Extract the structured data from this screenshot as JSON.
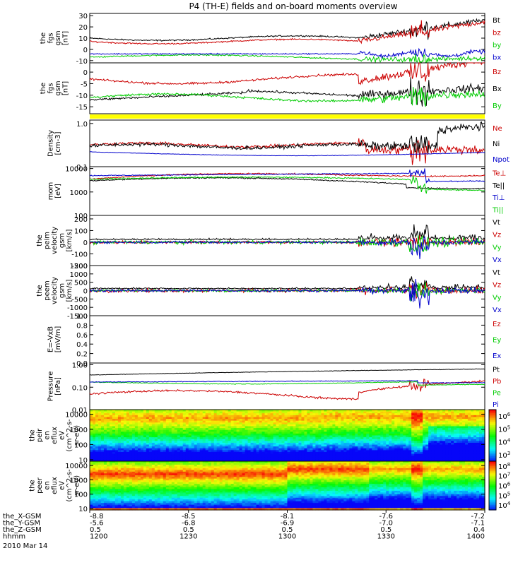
{
  "chart_data": {
    "type": "line",
    "title": "P4 (TH-E) fields and on-board moments overview",
    "date": "2010 Mar 14",
    "panels": [
      {
        "id": "fgs_all",
        "ylabel": [
          "the",
          "fgs",
          "gsm",
          "[nT]"
        ],
        "ylim": [
          -12,
          32
        ],
        "log": false,
        "ticks": [
          "30",
          "20",
          "10",
          "0",
          "-10"
        ],
        "tickvals": [
          30,
          20,
          10,
          0,
          -10
        ],
        "legend": [
          {
            "label": "Bt",
            "color": "#000000"
          },
          {
            "label": "bz",
            "color": "#cc0000"
          },
          {
            "label": "by",
            "color": "#00cc00"
          },
          {
            "label": "bx",
            "color": "#0000cc"
          }
        ],
        "series": [
          {
            "name": "Bt",
            "color": "#000000",
            "kind": "bt"
          },
          {
            "name": "bz",
            "color": "#cc0000",
            "kind": "bz"
          },
          {
            "name": "by",
            "color": "#00cc00",
            "kind": "by"
          },
          {
            "name": "bx",
            "color": "#0000cc",
            "kind": "bx"
          }
        ]
      },
      {
        "id": "fgs_zoom",
        "ylabel": [
          "the",
          "fgs",
          "gsm",
          "[nT]"
        ],
        "ylim": [
          -18,
          4
        ],
        "log": false,
        "ticks": [
          "0",
          "-5",
          "-10",
          "-15"
        ],
        "tickvals": [
          0,
          -5,
          -10,
          -15
        ],
        "legend": [
          {
            "label": "Bz",
            "color": "#cc0000"
          },
          {
            "label": "Bx",
            "color": "#000000"
          },
          {
            "label": "By",
            "color": "#00cc00"
          }
        ],
        "series": [
          {
            "name": "Bz",
            "color": "#cc0000",
            "kind": "bz2"
          },
          {
            "name": "Bx",
            "color": "#000000",
            "kind": "bx2"
          },
          {
            "name": "By",
            "color": "#00cc00",
            "kind": "by2"
          }
        ]
      },
      {
        "id": "density",
        "ylabel": [
          "Density",
          "[cm-3]"
        ],
        "ylim": [
          0.1,
          1.2
        ],
        "log": true,
        "ticks": [
          "1.0",
          "0.1"
        ],
        "tickvals": [
          1.0,
          0.1
        ],
        "legend": [
          {
            "label": "Ne",
            "color": "#cc0000"
          },
          {
            "label": "Ni",
            "color": "#000000"
          },
          {
            "label": "Npot",
            "color": "#0000cc"
          }
        ],
        "series": [
          {
            "name": "Ne",
            "color": "#cc0000",
            "kind": "ne"
          },
          {
            "name": "Ni",
            "color": "#000000",
            "kind": "ni"
          },
          {
            "name": "Npot",
            "color": "#0000cc",
            "kind": "npot"
          }
        ]
      },
      {
        "id": "temp",
        "ylabel": [
          "mom",
          "[eV]"
        ],
        "ylim": [
          100,
          12000
        ],
        "log": true,
        "ticks": [
          "10000",
          "1000",
          "100"
        ],
        "tickvals": [
          10000,
          1000,
          100
        ],
        "legend": [
          {
            "label": "Te⊥",
            "color": "#cc0000"
          },
          {
            "label": "Te||",
            "color": "#000000"
          },
          {
            "label": "Ti⊥",
            "color": "#0000cc"
          },
          {
            "label": "Ti||",
            "color": "#00cc00"
          }
        ],
        "series": [
          {
            "name": "Te⊥",
            "color": "#cc0000",
            "kind": "tep"
          },
          {
            "name": "Te||",
            "color": "#000000",
            "kind": "tel"
          },
          {
            "name": "Ti⊥",
            "color": "#0000cc",
            "kind": "tip"
          },
          {
            "name": "Ti||",
            "color": "#00cc00",
            "kind": "til"
          }
        ]
      },
      {
        "id": "peim_v",
        "ylabel": [
          "the",
          "peim",
          "velocity",
          "gsm",
          "[km/s]"
        ],
        "ylim": [
          -200,
          230
        ],
        "log": false,
        "ticks": [
          "200",
          "100",
          "0",
          "-100",
          "-200"
        ],
        "tickvals": [
          200,
          100,
          0,
          -100,
          -200
        ],
        "legend": [
          {
            "label": "Vt",
            "color": "#000000"
          },
          {
            "label": "Vz",
            "color": "#cc0000"
          },
          {
            "label": "Vy",
            "color": "#00cc00"
          },
          {
            "label": "Vx",
            "color": "#0000cc"
          }
        ],
        "series": [
          {
            "name": "Vt",
            "color": "#000000",
            "kind": "vt1"
          },
          {
            "name": "Vz",
            "color": "#cc0000",
            "kind": "vz1"
          },
          {
            "name": "Vy",
            "color": "#00cc00",
            "kind": "vy1"
          },
          {
            "name": "Vx",
            "color": "#0000cc",
            "kind": "vx1"
          }
        ]
      },
      {
        "id": "peem_v",
        "ylabel": [
          "the",
          "peem",
          "velocity",
          "gsm",
          "[km/s]"
        ],
        "ylim": [
          -1500,
          1500
        ],
        "log": false,
        "ticks": [
          "1500",
          "1000",
          "500",
          "0",
          "-500",
          "-1000",
          "-1500"
        ],
        "tickvals": [
          1500,
          1000,
          500,
          0,
          -500,
          -1000,
          -1500
        ],
        "legend": [
          {
            "label": "Vt",
            "color": "#000000"
          },
          {
            "label": "Vz",
            "color": "#cc0000"
          },
          {
            "label": "Vy",
            "color": "#00cc00"
          },
          {
            "label": "Vx",
            "color": "#0000cc"
          }
        ],
        "series": [
          {
            "name": "Vt",
            "color": "#000000",
            "kind": "vt2"
          },
          {
            "name": "Vz",
            "color": "#cc0000",
            "kind": "vz2"
          },
          {
            "name": "Vy",
            "color": "#00cc00",
            "kind": "vy2"
          },
          {
            "name": "Vx",
            "color": "#0000cc",
            "kind": "vx2"
          }
        ]
      },
      {
        "id": "efield",
        "ylabel": [
          "E=-VxB",
          "[mV/m]"
        ],
        "ylim": [
          0,
          1.0
        ],
        "log": false,
        "ticks": [
          "1.0",
          "0.8",
          "0.6",
          "0.4",
          "0.2",
          "0.0"
        ],
        "tickvals": [
          1.0,
          0.8,
          0.6,
          0.4,
          0.2,
          0.0
        ],
        "legend": [
          {
            "label": "Ez",
            "color": "#cc0000"
          },
          {
            "label": "Ey",
            "color": "#00cc00"
          },
          {
            "label": "Ex",
            "color": "#0000cc"
          }
        ],
        "series": []
      },
      {
        "id": "pressure",
        "ylabel": [
          "Pressure",
          "[nPa]"
        ],
        "ylim": [
          0.01,
          1.2
        ],
        "log": true,
        "ticks": [
          "1.00",
          "0.10",
          "0.01"
        ],
        "tickvals": [
          1.0,
          0.1,
          0.01
        ],
        "legend": [
          {
            "label": "Pt",
            "color": "#000000"
          },
          {
            "label": "Pb",
            "color": "#cc0000"
          },
          {
            "label": "Pe",
            "color": "#00cc00"
          },
          {
            "label": "Pi",
            "color": "#0000cc"
          }
        ],
        "series": [
          {
            "name": "Pt",
            "color": "#000000",
            "kind": "pt"
          },
          {
            "name": "Pb",
            "color": "#cc0000",
            "kind": "pb"
          },
          {
            "name": "Pe",
            "color": "#00cc00",
            "kind": "pe"
          },
          {
            "name": "Pi",
            "color": "#0000cc",
            "kind": "pi"
          }
        ]
      },
      {
        "id": "peir_eflux",
        "ylabel": [
          "the",
          "peir",
          "en",
          "eflux",
          "eV",
          "(cm^2-s-",
          "sr-eV)"
        ],
        "ylim": [
          8,
          20000
        ],
        "log": true,
        "ticks": [
          "10000",
          "1000",
          "100",
          "10"
        ],
        "tickvals": [
          10000,
          1000,
          100,
          10
        ],
        "colorbar": [
          "10",
          "10",
          "10",
          "10"
        ],
        "colorbar_exp": [
          "6",
          "5",
          "4",
          "3"
        ],
        "spectro": "ion"
      },
      {
        "id": "peer_eflux",
        "ylabel": [
          "the",
          "peer",
          "en",
          "eflux",
          "eV",
          "(cm^2-s-",
          "sr-eV)"
        ],
        "ylim": [
          8,
          20000
        ],
        "log": true,
        "ticks": [
          "10000",
          "1000",
          "100",
          "10"
        ],
        "tickvals": [
          10000,
          1000,
          100,
          10
        ],
        "colorbar": [
          "10",
          "10",
          "10",
          "10",
          "10"
        ],
        "colorbar_exp": [
          "8",
          "7",
          "6",
          "5",
          "4"
        ],
        "spectro": "electron"
      }
    ],
    "xaxis": {
      "ticks": [
        0,
        30,
        60,
        90,
        120
      ],
      "rows": [
        {
          "label": "the_X-GSM",
          "values": [
            "-8.8",
            "-8.5",
            "-8.1",
            "-7.6",
            "-7.2"
          ]
        },
        {
          "label": "the_Y-GSM",
          "values": [
            "-5.6",
            "-6.8",
            "-6.9",
            "-7.0",
            "-7.1"
          ]
        },
        {
          "label": "the_Z-GSM",
          "values": [
            "0.5",
            "0.5",
            "0.5",
            "0.5",
            "0.4"
          ]
        },
        {
          "label": "hhmm",
          "values": [
            "1200",
            "1230",
            "1300",
            "1330",
            "1400"
          ]
        }
      ]
    }
  }
}
